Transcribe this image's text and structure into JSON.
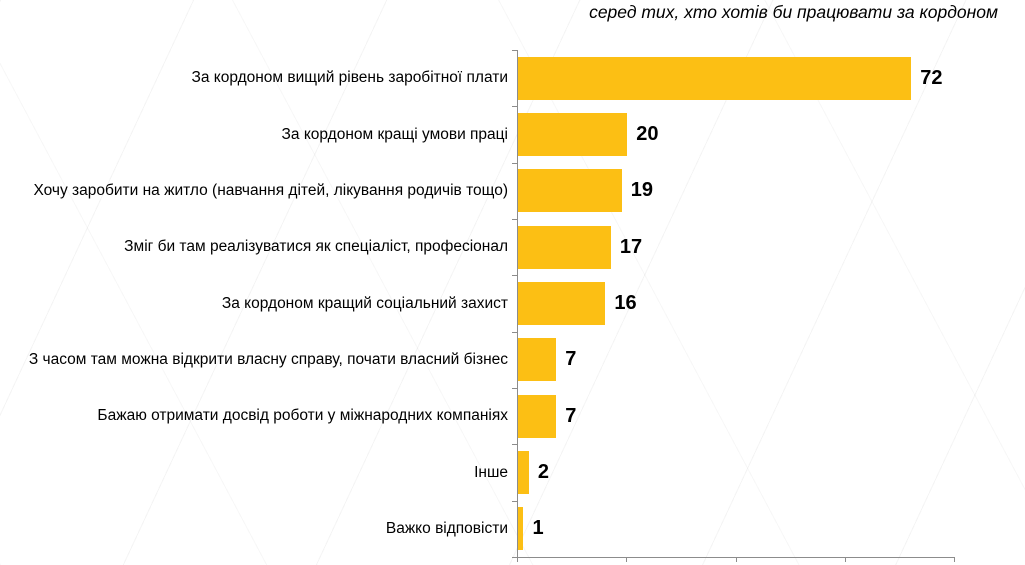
{
  "chart_data": {
    "type": "bar",
    "orientation": "horizontal",
    "title": "серед тих, хто хотів би працювати за кордоном",
    "categories": [
      "За кордоном вищий рівень заробітної плати",
      "За кордоном кращі умови праці",
      "Хочу заробити на житло (навчання дітей, лікування родичів тощо)",
      "Зміг би там реалізуватися як спеціаліст, професіонал",
      "За кордоном кращий соціальний захист",
      "З часом там можна відкрити власну справу, почати власний бізнес",
      "Бажаю отримати досвід роботи у міжнародних компаніях",
      "Інше",
      "Важко відповісти"
    ],
    "values": [
      72,
      20,
      19,
      17,
      16,
      7,
      7,
      2,
      1
    ],
    "xlim": [
      0,
      80
    ],
    "x_ticks": [
      0,
      20,
      40,
      60,
      80
    ],
    "data_labels": true,
    "grid": false,
    "legend": false,
    "bar_color": "#FCBF14",
    "axis_color": "#8C8C8C",
    "text_color": "#000000"
  }
}
